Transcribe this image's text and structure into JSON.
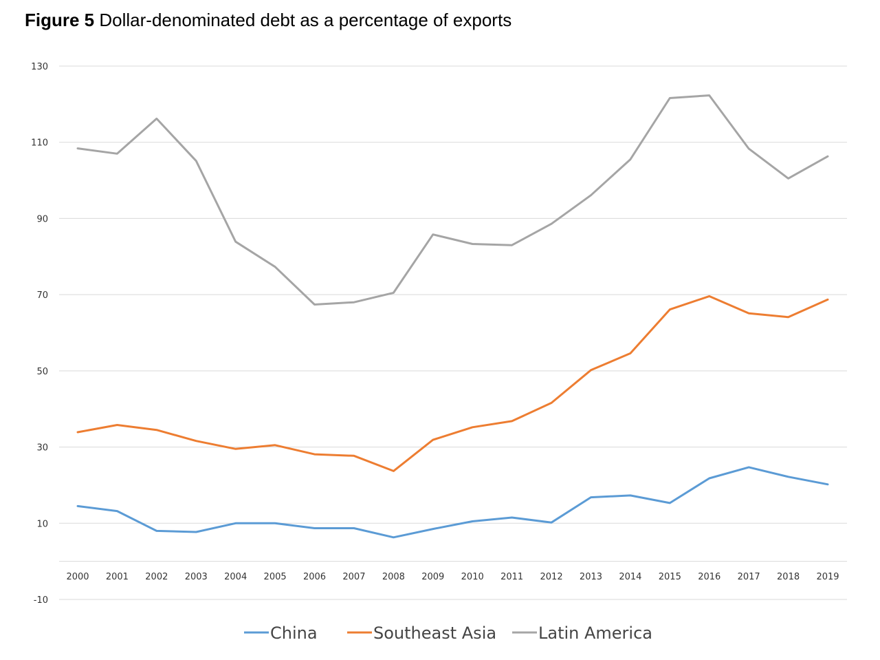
{
  "header": {
    "figure_label": "Figure 5",
    "title_text": "Dollar-denominated debt as a percentage of exports"
  },
  "chart_data": {
    "type": "line",
    "title": "Figure 5 Dollar-denominated debt as a percentage of exports",
    "xlabel": "",
    "ylabel": "",
    "ylim": [
      -10,
      130
    ],
    "y_ticks": [
      -10,
      10,
      30,
      50,
      70,
      90,
      110,
      130
    ],
    "grid": true,
    "legend_position": "bottom",
    "categories": [
      "2000",
      "2001",
      "2002",
      "2003",
      "2004",
      "2005",
      "2006",
      "2007",
      "2008",
      "2009",
      "2010",
      "2011",
      "2012",
      "2013",
      "2014",
      "2015",
      "2016",
      "2017",
      "2018",
      "2019"
    ],
    "series": [
      {
        "name": "China",
        "color": "#5b9bd5",
        "values": [
          14.5,
          13.2,
          8.0,
          7.7,
          10.0,
          10.0,
          8.7,
          8.7,
          6.3,
          8.5,
          10.5,
          11.5,
          10.2,
          16.8,
          17.3,
          15.3,
          21.8,
          24.7,
          22.2,
          20.2
        ]
      },
      {
        "name": "Southeast Asia",
        "color": "#ed7d31",
        "values": [
          33.9,
          35.8,
          34.5,
          31.6,
          29.5,
          30.5,
          28.1,
          27.7,
          23.7,
          31.9,
          35.2,
          36.8,
          41.6,
          50.2,
          54.6,
          66.1,
          69.6,
          65.1,
          64.1,
          68.7
        ]
      },
      {
        "name": "Latin America",
        "color": "#a5a5a5",
        "values": [
          108.4,
          107.0,
          116.2,
          105.1,
          83.9,
          77.3,
          67.4,
          68.0,
          70.5,
          85.8,
          83.3,
          83.0,
          88.6,
          96.1,
          105.5,
          121.6,
          122.3,
          108.3,
          100.5,
          106.3
        ]
      }
    ]
  }
}
